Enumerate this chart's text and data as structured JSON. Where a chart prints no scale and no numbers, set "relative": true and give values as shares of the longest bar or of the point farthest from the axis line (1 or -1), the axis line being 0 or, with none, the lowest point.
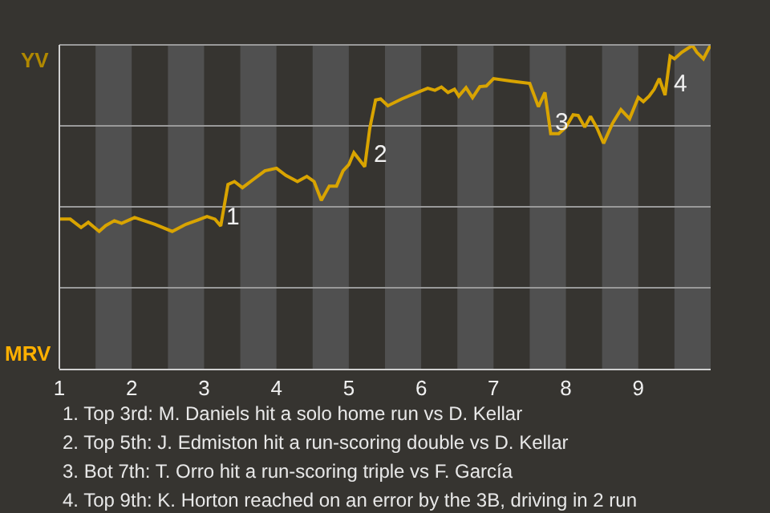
{
  "chart_data": {
    "type": "line",
    "relative": true,
    "grid": "y",
    "marker": "none",
    "line_style": "solid",
    "x": [
      1.0,
      1.15,
      1.3,
      1.4,
      1.55,
      1.64,
      1.76,
      1.86,
      2.04,
      2.32,
      2.56,
      2.75,
      2.91,
      3.04,
      3.15,
      3.23,
      3.33,
      3.42,
      3.53,
      3.69,
      3.84,
      4.0,
      4.13,
      4.29,
      4.42,
      4.52,
      4.62,
      4.73,
      4.83,
      4.92,
      5.0,
      5.07,
      5.15,
      5.22,
      5.29,
      5.37,
      5.44,
      5.54,
      5.73,
      6.0,
      6.09,
      6.19,
      6.28,
      6.37,
      6.46,
      6.52,
      6.62,
      6.71,
      6.81,
      6.9,
      7.0,
      7.25,
      7.5,
      7.62,
      7.71,
      7.79,
      7.9,
      8.0,
      8.1,
      8.17,
      8.26,
      8.34,
      8.43,
      8.52,
      8.64,
      8.76,
      8.88,
      9.0,
      9.07,
      9.15,
      9.22,
      9.29,
      9.37,
      9.44,
      9.5,
      9.6,
      9.69,
      9.75,
      9.81,
      9.9,
      10.0
    ],
    "series": [
      {
        "color": "#d9a400",
        "values": [
          0.462,
          0.462,
          0.436,
          0.452,
          0.424,
          0.442,
          0.457,
          0.449,
          0.467,
          0.446,
          0.424,
          0.446,
          0.459,
          0.47,
          0.462,
          0.441,
          0.569,
          0.578,
          0.559,
          0.586,
          0.611,
          0.619,
          0.597,
          0.578,
          0.594,
          0.578,
          0.52,
          0.564,
          0.564,
          0.611,
          0.63,
          0.667,
          0.644,
          0.624,
          0.743,
          0.83,
          0.833,
          0.812,
          0.833,
          0.858,
          0.866,
          0.86,
          0.87,
          0.853,
          0.863,
          0.842,
          0.868,
          0.837,
          0.871,
          0.873,
          0.896,
          0.888,
          0.881,
          0.809,
          0.853,
          0.726,
          0.726,
          0.746,
          0.784,
          0.782,
          0.746,
          0.779,
          0.743,
          0.696,
          0.756,
          0.8,
          0.772,
          0.838,
          0.825,
          0.842,
          0.863,
          0.896,
          0.845,
          0.965,
          0.957,
          0.977,
          0.99,
          0.998,
          0.977,
          0.957,
          1
        ]
      }
    ],
    "xlim": [
      1,
      10
    ],
    "xticks": [
      1,
      2,
      3,
      4,
      5,
      6,
      7,
      8,
      9
    ],
    "tick_labels": "x",
    "bands": [
      {
        "axis": "x",
        "from": 1.5,
        "to": 2,
        "color": "#505050"
      },
      {
        "axis": "x",
        "from": 2.5,
        "to": 3,
        "color": "#505050"
      },
      {
        "axis": "x",
        "from": 3.5,
        "to": 4,
        "color": "#505050"
      },
      {
        "axis": "x",
        "from": 4.5,
        "to": 5,
        "color": "#505050"
      },
      {
        "axis": "x",
        "from": 5.5,
        "to": 6,
        "color": "#505050"
      },
      {
        "axis": "x",
        "from": 6.5,
        "to": 7,
        "color": "#505050"
      },
      {
        "axis": "x",
        "from": 7.5,
        "to": 8,
        "color": "#505050"
      },
      {
        "axis": "x",
        "from": 8.5,
        "to": 9,
        "color": "#505050"
      },
      {
        "axis": "x",
        "from": 9.5,
        "to": 10,
        "color": "#505050"
      }
    ],
    "annotations": [
      "YV",
      "MRV",
      {
        "text": "1",
        "x": 3.27,
        "y": 0.47
      },
      {
        "text": "2",
        "x": 5.29,
        "y": 0.66
      },
      {
        "text": "3",
        "x": 7.81,
        "y": 0.76
      },
      {
        "text": "4",
        "x": 9.44,
        "y": 0.88
      },
      "1. Top 3rd: M. Daniels hit a solo home run vs D. Kellar",
      "2. Top 5th: J. Edmiston hit a run-scoring double vs D. Kellar",
      "3. Bot 7th: T. Orro hit a run-scoring triple vs F. García",
      "4. Top 9th: K. Horton reached on an error by the 3B, driving in 2 run"
    ]
  }
}
